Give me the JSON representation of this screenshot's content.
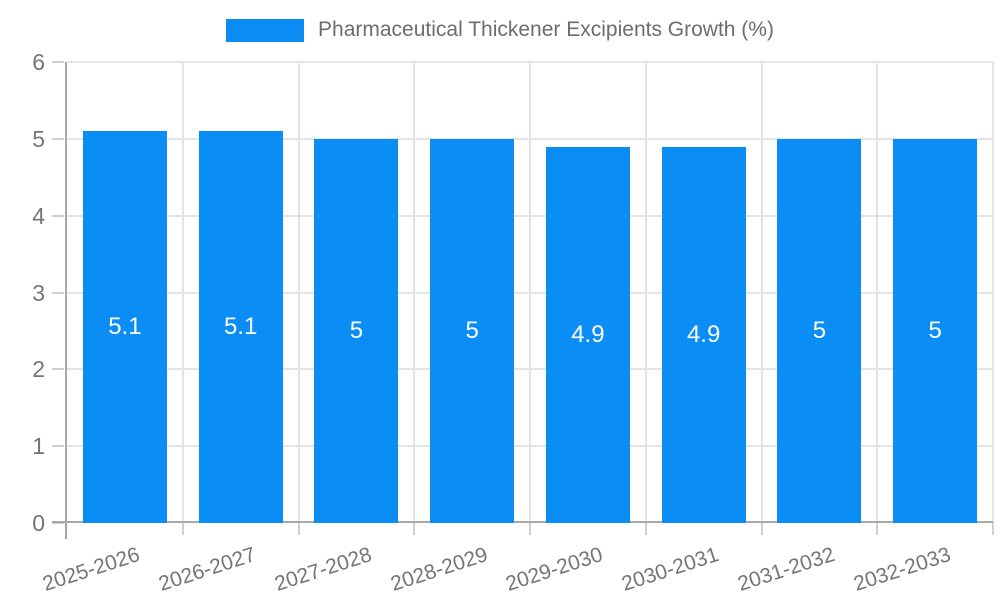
{
  "legend": {
    "label": "Pharmaceutical Thickener Excipients Growth (%)"
  },
  "chart_data": {
    "type": "bar",
    "title": "Pharmaceutical Thickener Excipients Growth (%)",
    "categories": [
      "2025-2026",
      "2026-2027",
      "2027-2028",
      "2028-2029",
      "2029-2030",
      "2030-2031",
      "2031-2032",
      "2032-2033"
    ],
    "values": [
      5.1,
      5.1,
      5,
      5,
      4.9,
      4.9,
      5,
      5
    ],
    "value_labels": [
      "5.1",
      "5.1",
      "5",
      "5",
      "4.9",
      "4.9",
      "5",
      "5"
    ],
    "xlabel": "",
    "ylabel": "",
    "ylim": [
      0,
      6
    ],
    "yticks": [
      0,
      1,
      2,
      3,
      4,
      5,
      6
    ],
    "grid": true,
    "legend_position": "top",
    "x_label_rotation_deg": -18,
    "colors": {
      "bar": "#0a8df5",
      "gridline": "#e4e4e4",
      "axis_line": "#a8a8a8",
      "tick_mark": "#cfcfcf",
      "axis_text": "#757575",
      "value_label_text": "#ffffff",
      "legend_text": "#6d6d6d"
    }
  }
}
